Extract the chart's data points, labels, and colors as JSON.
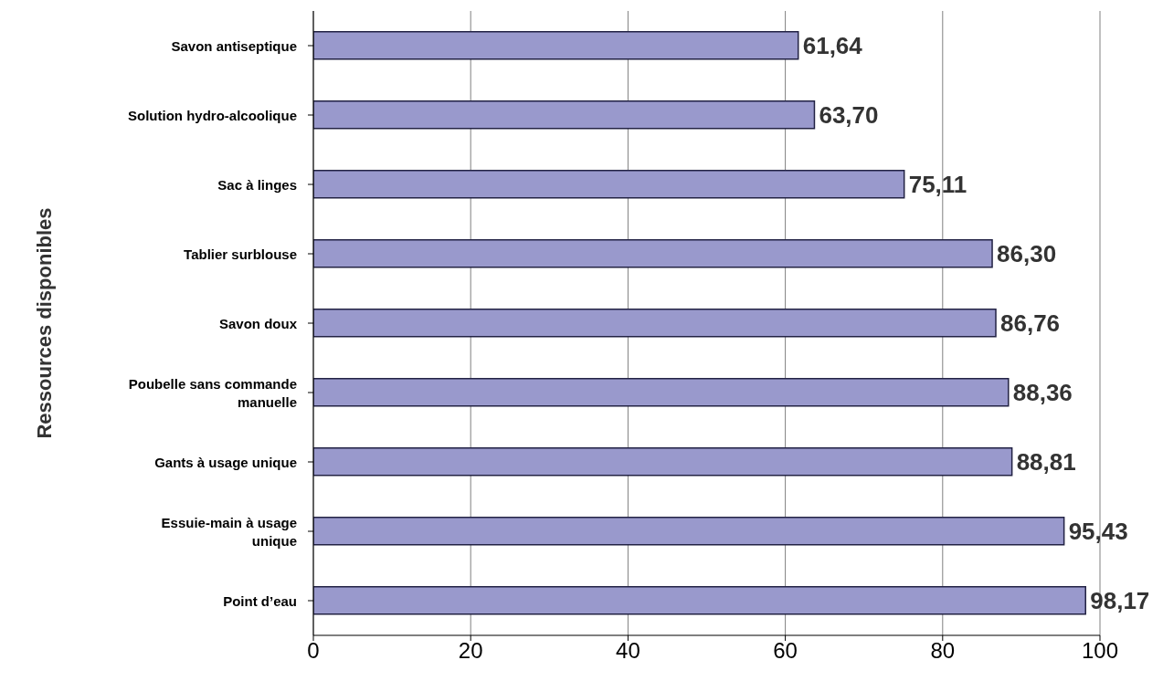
{
  "chart_data": {
    "type": "bar",
    "orientation": "horizontal",
    "ylabel": "Ressources disponibles",
    "categories": [
      "Savon antiseptique",
      "Solution hydro-alcoolique",
      "Sac à linges",
      "Tablier surblouse",
      "Savon doux",
      "Poubelle sans commande manuelle",
      "Gants à usage unique",
      "Essuie-main à usage unique",
      "Point d’eau"
    ],
    "values": [
      61.64,
      63.7,
      75.11,
      86.3,
      86.76,
      88.36,
      88.81,
      95.43,
      98.17
    ],
    "value_labels": [
      "61,64",
      "63,70",
      "75,11",
      "86,30",
      "86,76",
      "88,36",
      "88,81",
      "95,43",
      "98,17"
    ],
    "color": "#9999cc",
    "xlim": [
      0,
      100
    ],
    "xticks": [
      0,
      20,
      40,
      60,
      80,
      100
    ],
    "grid": "x"
  }
}
